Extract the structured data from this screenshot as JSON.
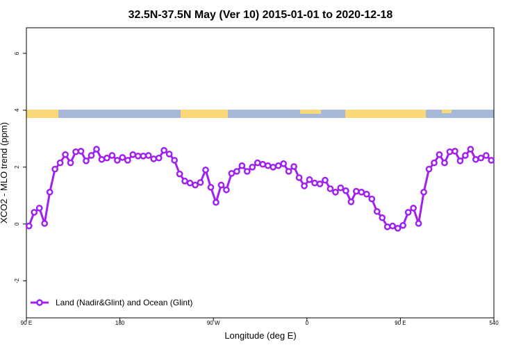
{
  "chart_data": {
    "type": "line",
    "title": "32.5N-37.5N May (Ver 10)   2015-01-01 to 2020-12-18",
    "x_label": "Longitude (deg E)",
    "y_label": "XCO2 - MLO trend (ppm)",
    "x": [
      92.5,
      97.5,
      102.5,
      107.5,
      112.5,
      117.5,
      122.5,
      127.5,
      132.5,
      137.5,
      142.5,
      147.5,
      152.5,
      157.5,
      162.5,
      167.5,
      172.5,
      177.5,
      182.5,
      187.5,
      192.5,
      197.5,
      202.5,
      207.5,
      212.5,
      217.5,
      222.5,
      227.5,
      232.5,
      237.5,
      242.5,
      247.5,
      252.5,
      257.5,
      262.5,
      267.5,
      272.5,
      277.5,
      282.5,
      287.5,
      292.5,
      297.5,
      302.5,
      307.5,
      312.5,
      317.5,
      322.5,
      327.5,
      332.5,
      337.5,
      342.5,
      347.5,
      352.5,
      357.5,
      362.5,
      367.5,
      372.5,
      377.5,
      382.5,
      387.5,
      392.5,
      397.5,
      402.5,
      407.5,
      412.5,
      417.5,
      422.5,
      427.5,
      432.5,
      437.5,
      442.5,
      447.5,
      452.5,
      457.5,
      462.5,
      467.5,
      472.5,
      477.5,
      482.5,
      487.5,
      492.5,
      497.5,
      502.5,
      507.5,
      512.5,
      517.5,
      522.5,
      527.5,
      532.5,
      537.5
    ],
    "series": [
      {
        "name": "Land (Nadir&Glint) and Ocean (Glint)",
        "color": "#a020f0",
        "values": [
          -0.07,
          0.41,
          0.56,
          0.02,
          1.12,
          1.93,
          2.15,
          2.44,
          2.15,
          2.54,
          2.56,
          2.22,
          2.41,
          2.63,
          2.27,
          2.32,
          2.41,
          2.24,
          2.34,
          2.24,
          2.44,
          2.39,
          2.39,
          2.41,
          2.29,
          2.32,
          2.59,
          2.46,
          2.24,
          1.76,
          1.51,
          1.44,
          1.37,
          1.46,
          1.9,
          1.29,
          0.76,
          1.37,
          1.2,
          1.78,
          1.85,
          2.05,
          1.85,
          2.0,
          2.15,
          2.1,
          2.05,
          2.0,
          2.05,
          2.12,
          1.85,
          2.02,
          1.63,
          1.34,
          1.56,
          1.44,
          1.41,
          1.54,
          1.24,
          1.12,
          1.27,
          1.17,
          0.78,
          1.15,
          1.12,
          1.05,
          0.88,
          0.44,
          0.22,
          -0.1,
          -0.07,
          -0.15,
          -0.05,
          0.41,
          0.56,
          0.02,
          1.12,
          1.93,
          2.15,
          2.44,
          2.15,
          2.54,
          2.56,
          2.22,
          2.41,
          2.63,
          2.27,
          2.32,
          2.41,
          2.24
        ]
      }
    ],
    "xlim": [
      90,
      540
    ],
    "xticks": [
      {
        "value": 90,
        "label": "90 E"
      },
      180,
      {
        "value": 270,
        "label": "90 W"
      },
      {
        "value": 360,
        "label": "0"
      },
      {
        "value": 450,
        "label": "90 E"
      },
      540
    ],
    "ylim": [
      -3.3,
      6.9
    ],
    "yticks": [
      -2,
      0,
      2,
      4,
      6
    ],
    "legend": "bottom-left"
  }
}
